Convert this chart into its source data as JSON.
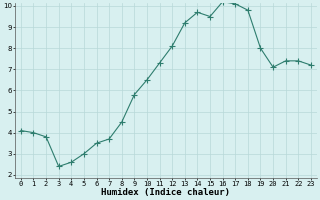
{
  "x": [
    0,
    1,
    2,
    3,
    4,
    5,
    6,
    7,
    8,
    9,
    10,
    11,
    12,
    13,
    14,
    15,
    16,
    17,
    18,
    19,
    20,
    21,
    22,
    23
  ],
  "y": [
    4.1,
    4.0,
    3.8,
    2.4,
    2.6,
    3.0,
    3.5,
    3.7,
    4.5,
    5.8,
    6.5,
    7.3,
    8.1,
    9.2,
    9.7,
    9.5,
    10.2,
    10.1,
    9.8,
    8.0,
    7.1,
    7.4,
    7.4,
    7.2
  ],
  "line_color": "#2e7d6e",
  "bg_color": "#d8f0f0",
  "grid_color": "#b8d8d8",
  "xlabel": "Humidex (Indice chaleur)",
  "ylim": [
    2,
    10
  ],
  "xlim": [
    -0.5,
    23.5
  ],
  "yticks": [
    2,
    3,
    4,
    5,
    6,
    7,
    8,
    9,
    10
  ],
  "xticks": [
    0,
    1,
    2,
    3,
    4,
    5,
    6,
    7,
    8,
    9,
    10,
    11,
    12,
    13,
    14,
    15,
    16,
    17,
    18,
    19,
    20,
    21,
    22,
    23
  ],
  "tick_fontsize": 5.0,
  "xlabel_fontsize": 6.5,
  "marker_size": 2.0,
  "linewidth": 0.8
}
